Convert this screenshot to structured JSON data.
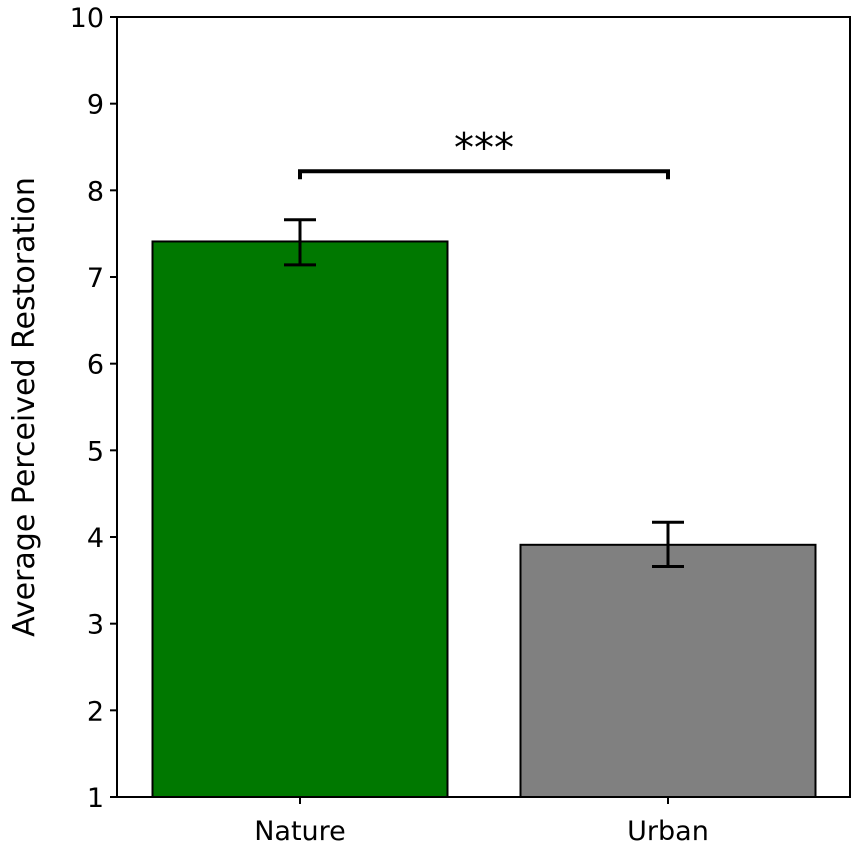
{
  "chart_data": {
    "type": "bar",
    "categories": [
      "Nature",
      "Urban"
    ],
    "values": [
      7.41,
      3.91
    ],
    "error_low": [
      7.14,
      3.66
    ],
    "error_high": [
      7.66,
      4.17
    ],
    "colors": [
      "#007800",
      "#808080"
    ],
    "title": "",
    "xlabel": "",
    "ylabel": "Average Perceived Restoration",
    "ylim": [
      1,
      10
    ],
    "yticks": [
      "1",
      "2",
      "3",
      "4",
      "5",
      "6",
      "7",
      "8",
      "9",
      "10"
    ],
    "grid": false,
    "annotation": {
      "text": "***",
      "between": [
        "Nature",
        "Urban"
      ],
      "y": 8.22
    }
  }
}
